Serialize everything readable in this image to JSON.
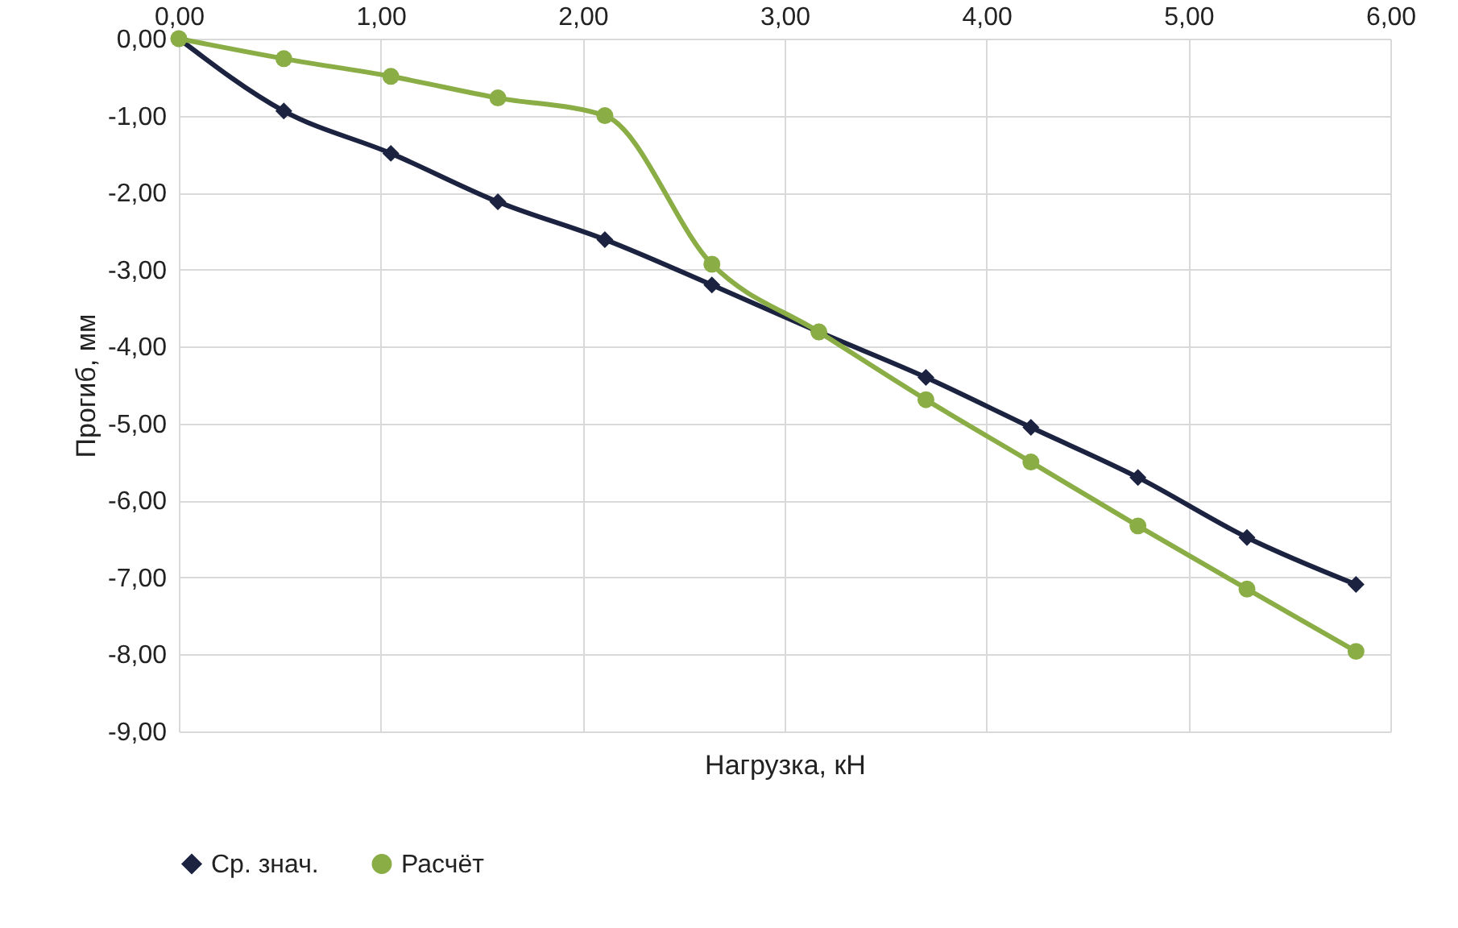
{
  "chart_data": {
    "type": "line",
    "xlabel": "Нагрузка, кН",
    "ylabel": "Прогиб, мм",
    "series": [
      {
        "name": "Ср. знач.",
        "color": "#1c2340",
        "marker": "diamond",
        "x": [
          0,
          0.52,
          1.05,
          1.58,
          2.11,
          2.64,
          3.17,
          3.7,
          4.22,
          4.75,
          5.29,
          5.83
        ],
        "values": [
          0,
          -0.94,
          -1.49,
          -2.12,
          -2.61,
          -3.2,
          -3.81,
          -4.4,
          -5.05,
          -5.7,
          -6.48,
          -7.09
        ]
      },
      {
        "name": "Расчёт",
        "color": "#8aad46",
        "marker": "circle",
        "x": [
          0,
          0.52,
          1.05,
          1.58,
          2.11,
          2.64,
          3.17,
          3.7,
          4.22,
          4.75,
          5.29,
          5.83
        ],
        "values": [
          0,
          -0.26,
          -0.49,
          -0.77,
          -1.0,
          -2.93,
          -3.81,
          -4.69,
          -5.5,
          -6.33,
          -7.15,
          -7.96
        ]
      }
    ],
    "xlim": [
      0,
      6
    ],
    "xticks": [
      {
        "value": 0,
        "label": "0,00"
      },
      {
        "value": 1,
        "label": "1,00"
      },
      {
        "value": 2,
        "label": "2,00"
      },
      {
        "value": 3,
        "label": "3,00"
      },
      {
        "value": 4,
        "label": "4,00"
      },
      {
        "value": 5,
        "label": "5,00"
      },
      {
        "value": 6,
        "label": "6,00"
      }
    ],
    "ylim": [
      -9,
      0
    ],
    "yticks": [
      {
        "value": 0,
        "label": "0,00"
      },
      {
        "value": -1,
        "label": "-1,00"
      },
      {
        "value": -2,
        "label": "-2,00"
      },
      {
        "value": -3,
        "label": "-3,00"
      },
      {
        "value": -4,
        "label": "-4,00"
      },
      {
        "value": -5,
        "label": "-5,00"
      },
      {
        "value": -6,
        "label": "-6,00"
      },
      {
        "value": -7,
        "label": "-7,00"
      },
      {
        "value": -8,
        "label": "-8,00"
      },
      {
        "value": -9,
        "label": "-9,00"
      }
    ],
    "grid": true,
    "legend": "bottom",
    "line_style": "solid"
  }
}
